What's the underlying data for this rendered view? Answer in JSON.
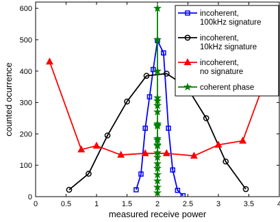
{
  "chart_data": {
    "type": "line",
    "xlabel": "measured receive power",
    "ylabel": "counted ocurrence",
    "xlim": [
      0,
      4
    ],
    "ylim": [
      0,
      620
    ],
    "xticks": [
      0,
      0.5,
      1,
      1.5,
      2,
      2.5,
      3,
      3.5,
      4
    ],
    "xtick_labels": [
      "0",
      "0.5",
      "1",
      "1.5",
      "2",
      "2.5",
      "3",
      "3.5",
      "4"
    ],
    "yticks": [
      0,
      100,
      200,
      300,
      400,
      500,
      600
    ],
    "ytick_labels": [
      "0",
      "100",
      "200",
      "300",
      "400",
      "500",
      "600"
    ],
    "grid": false,
    "legend_position": "top-right",
    "series": [
      {
        "name": "incoherent, 100kHz signature",
        "legend_lines": [
          "incoherent,",
          "100kHz signature"
        ],
        "color": "#0000ff",
        "marker": "square",
        "x": [
          1.65,
          1.73,
          1.8,
          1.87,
          1.93,
          2.0,
          2.1,
          2.18,
          2.25,
          2.33,
          2.42
        ],
        "y": [
          22,
          72,
          218,
          318,
          405,
          497,
          458,
          218,
          85,
          20,
          3
        ]
      },
      {
        "name": "incoherent, 10kHz signature",
        "legend_lines": [
          "incoherent,",
          "10kHz signature"
        ],
        "color": "#000000",
        "marker": "circle",
        "x": [
          0.55,
          0.87,
          1.18,
          1.5,
          1.82,
          2.15,
          2.48,
          2.8,
          3.12,
          3.45
        ],
        "y": [
          22,
          73,
          195,
          303,
          385,
          392,
          350,
          250,
          112,
          24
        ]
      },
      {
        "name": "incoherent, no signature",
        "legend_lines": [
          "incoherent,",
          "no signature"
        ],
        "color": "#ff0000",
        "marker": "triangle",
        "x": [
          0.23,
          0.75,
          1.0,
          1.4,
          1.8,
          2.15,
          2.6,
          3.0,
          3.4,
          3.85
        ],
        "y": [
          430,
          150,
          162,
          133,
          138,
          138,
          130,
          165,
          178,
          415
        ]
      },
      {
        "name": "coherent phase",
        "legend_lines": [
          "coherent phase"
        ],
        "color": "#008000",
        "marker": "star",
        "x": [
          2,
          2,
          2,
          2,
          2,
          2,
          2,
          2,
          2,
          2,
          2,
          2,
          2,
          2,
          2,
          2,
          2,
          2,
          2,
          2,
          2,
          2
        ],
        "y": [
          600,
          500,
          400,
          315,
          305,
          290,
          270,
          232,
          228,
          225,
          185,
          180,
          165,
          162,
          140,
          125,
          105,
          90,
          70,
          50,
          30,
          12
        ]
      }
    ]
  }
}
